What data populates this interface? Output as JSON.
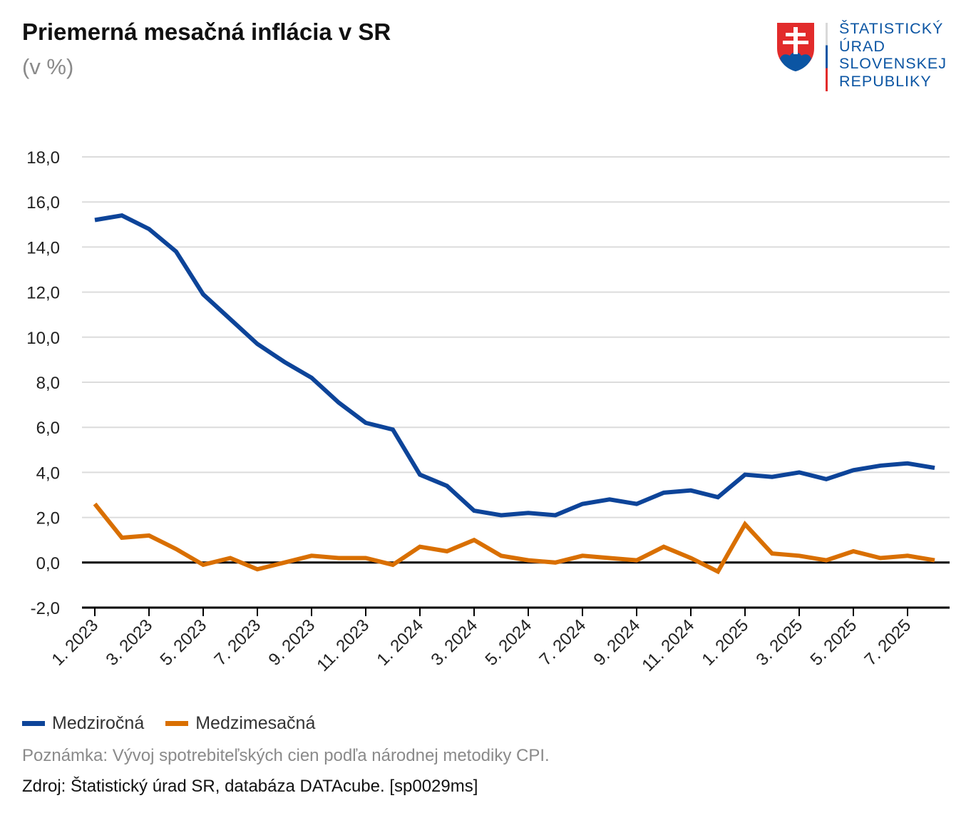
{
  "header": {
    "title": "Priemerná mesačná inflácia v SR",
    "subtitle": "(v %)"
  },
  "logo": {
    "lines": [
      "ŠTATISTICKÝ",
      "ÚRAD",
      "SLOVENSKEJ",
      "REPUBLIKY"
    ]
  },
  "footer": {
    "note": "Poznámka: Vývoj spotrebiteľských cien podľa národnej metodiky CPI.",
    "source": "Zdroj: Štatistický úrad SR, databáza DATAcube. [sp0029ms]"
  },
  "chart_data": {
    "type": "line",
    "title": "Priemerná mesačná inflácia v SR",
    "ylabel": "(v %)",
    "xlabel": "",
    "ylim": [
      -2,
      18
    ],
    "yticks": [
      "-2,0",
      "0,0",
      "2,0",
      "4,0",
      "6,0",
      "8,0",
      "10,0",
      "12,0",
      "14,0",
      "16,0",
      "18,0"
    ],
    "ytick_values": [
      -2,
      0,
      2,
      4,
      6,
      8,
      10,
      12,
      14,
      16,
      18
    ],
    "grid": true,
    "legend_position": "bottom-left",
    "x": [
      "1. 2023",
      "2. 2023",
      "3. 2023",
      "4. 2023",
      "5. 2023",
      "6. 2023",
      "7. 2023",
      "8. 2023",
      "9. 2023",
      "10. 2023",
      "11. 2023",
      "12. 2023",
      "1. 2024",
      "2. 2024",
      "3. 2024",
      "4. 2024",
      "5. 2024",
      "6. 2024",
      "7. 2024",
      "8. 2024",
      "9. 2024",
      "10. 2024",
      "11. 2024",
      "12. 2024",
      "1. 2025",
      "2. 2025",
      "3. 2025",
      "4. 2025",
      "5. 2025",
      "6. 2025",
      "7. 2025",
      "8. 2025"
    ],
    "xtick_labels": [
      "1. 2023",
      "3. 2023",
      "5. 2023",
      "7. 2023",
      "9. 2023",
      "11. 2023",
      "1. 2024",
      "3. 2024",
      "5. 2024",
      "7. 2024",
      "9. 2024",
      "11. 2024",
      "1. 2025",
      "3. 2025",
      "5. 2025",
      "7. 2025"
    ],
    "series": [
      {
        "name": "Medziročná",
        "color": "#0d4499",
        "values": [
          15.2,
          15.4,
          14.8,
          13.8,
          11.9,
          10.8,
          9.7,
          8.9,
          8.2,
          7.1,
          6.2,
          5.9,
          3.9,
          3.4,
          2.3,
          2.1,
          2.2,
          2.1,
          2.6,
          2.8,
          2.6,
          3.1,
          3.2,
          2.9,
          3.9,
          3.8,
          4.0,
          3.7,
          4.1,
          4.3,
          4.4,
          4.2
        ]
      },
      {
        "name": "Medzimesačná",
        "color": "#d96f00",
        "values": [
          2.6,
          1.1,
          1.2,
          0.6,
          -0.1,
          0.2,
          -0.3,
          0.0,
          0.3,
          0.2,
          0.2,
          -0.1,
          0.7,
          0.5,
          1.0,
          0.3,
          0.1,
          0.0,
          0.3,
          0.2,
          0.1,
          0.7,
          0.2,
          -0.4,
          1.7,
          0.4,
          0.3,
          0.1,
          0.5,
          0.2,
          0.3,
          0.1
        ]
      }
    ]
  }
}
